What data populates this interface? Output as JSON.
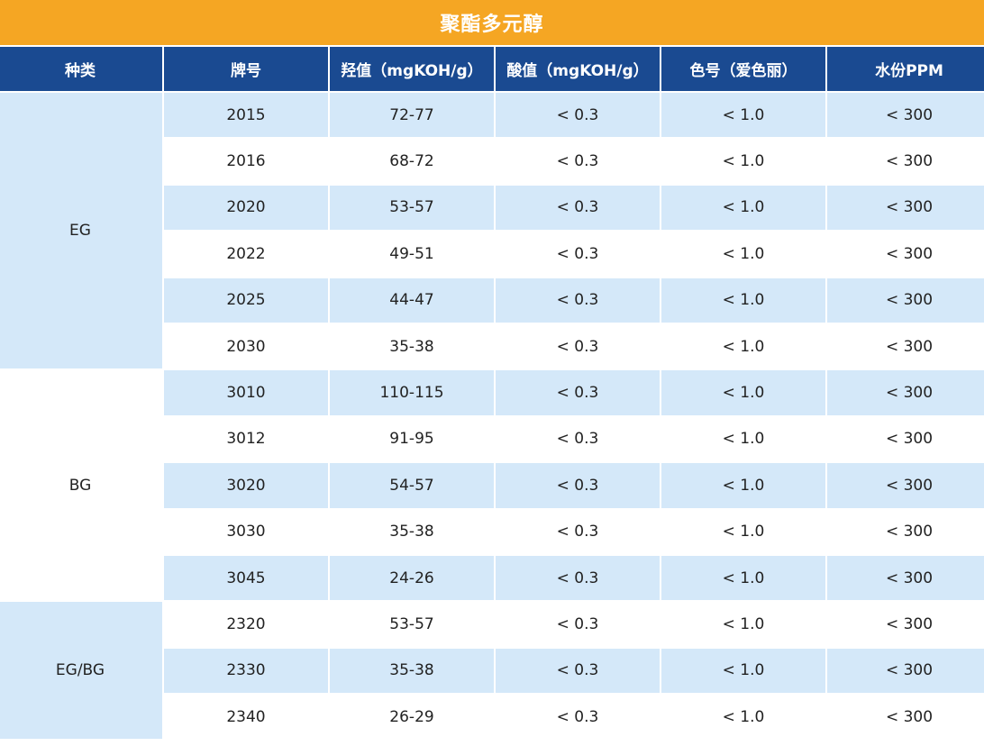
{
  "title": "聚酯多元醇",
  "columns": [
    "种类",
    "牌号",
    "羟值（mgKOH/g）",
    "酸值（mgKOH/g）",
    "色号（爱色丽）",
    "水份PPM"
  ],
  "groups": [
    {
      "category": "EG",
      "rows": [
        {
          "grade": "2015",
          "hydroxyl": "72-77",
          "acid": "< 0.3",
          "color": "< 1.0",
          "water": "< 300"
        },
        {
          "grade": "2016",
          "hydroxyl": "68-72",
          "acid": "< 0.3",
          "color": "< 1.0",
          "water": "< 300"
        },
        {
          "grade": "2020",
          "hydroxyl": "53-57",
          "acid": "< 0.3",
          "color": "< 1.0",
          "water": "< 300"
        },
        {
          "grade": "2022",
          "hydroxyl": "49-51",
          "acid": "< 0.3",
          "color": "< 1.0",
          "water": "< 300"
        },
        {
          "grade": "2025",
          "hydroxyl": "44-47",
          "acid": "< 0.3",
          "color": "< 1.0",
          "water": "< 300"
        },
        {
          "grade": "2030",
          "hydroxyl": "35-38",
          "acid": "< 0.3",
          "color": "< 1.0",
          "water": "< 300"
        }
      ]
    },
    {
      "category": "BG",
      "rows": [
        {
          "grade": "3010",
          "hydroxyl": "110-115",
          "acid": "< 0.3",
          "color": "< 1.0",
          "water": "< 300"
        },
        {
          "grade": "3012",
          "hydroxyl": "91-95",
          "acid": "< 0.3",
          "color": "< 1.0",
          "water": "< 300"
        },
        {
          "grade": "3020",
          "hydroxyl": "54-57",
          "acid": "< 0.3",
          "color": "< 1.0",
          "water": "< 300"
        },
        {
          "grade": "3030",
          "hydroxyl": "35-38",
          "acid": "< 0.3",
          "color": "< 1.0",
          "water": "< 300"
        },
        {
          "grade": "3045",
          "hydroxyl": "24-26",
          "acid": "< 0.3",
          "color": "< 1.0",
          "water": "< 300"
        }
      ]
    },
    {
      "category": "EG/BG",
      "rows": [
        {
          "grade": "2320",
          "hydroxyl": "53-57",
          "acid": "< 0.3",
          "color": "< 1.0",
          "water": "< 300"
        },
        {
          "grade": "2330",
          "hydroxyl": "35-38",
          "acid": "< 0.3",
          "color": "< 1.0",
          "water": "< 300"
        },
        {
          "grade": "2340",
          "hydroxyl": "26-29",
          "acid": "< 0.3",
          "color": "< 1.0",
          "water": "< 300"
        }
      ]
    }
  ],
  "colors": {
    "title_bg": "#f5a623",
    "header_bg": "#1a4a91",
    "row_shade": "#d4e8f9",
    "row_plain": "#ffffff"
  }
}
